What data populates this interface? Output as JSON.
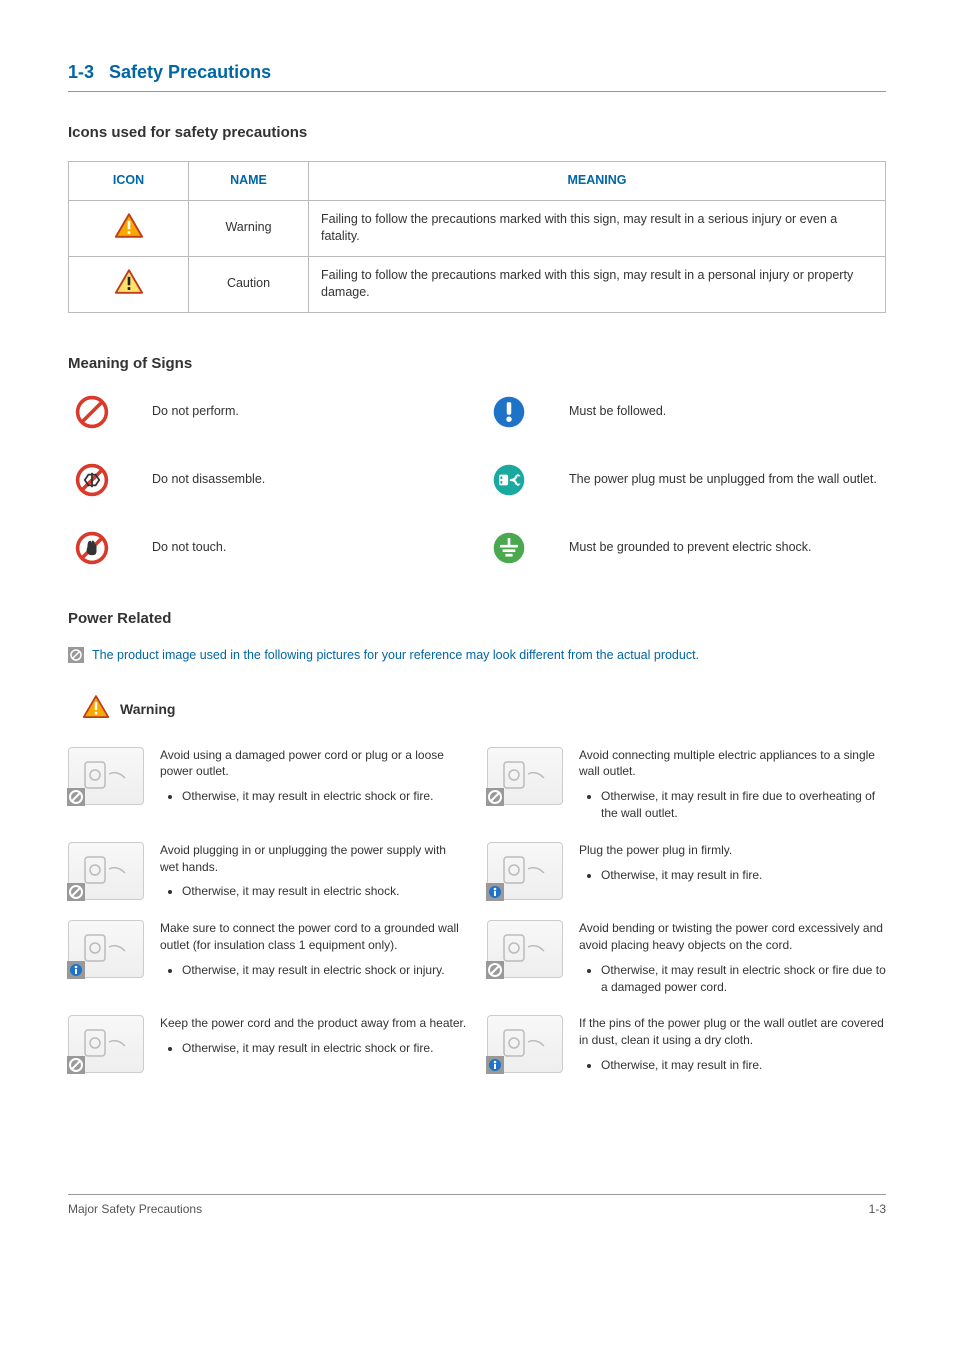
{
  "section": {
    "number": "1-3",
    "title": "Safety Precautions"
  },
  "subsections": {
    "icons": "Icons used for safety precautions",
    "signs": "Meaning of Signs",
    "power": "Power Related"
  },
  "iconTable": {
    "headers": {
      "icon": "ICON",
      "name": "NAME",
      "meaning": "MEANING"
    },
    "rows": [
      {
        "name": "Warning",
        "meaning": "Failing to follow the precautions marked with this sign, may result in a serious injury or even a fatality.",
        "tri_fill": "#f7a900",
        "tri_bang": "#ffffff"
      },
      {
        "name": "Caution",
        "meaning": "Failing to follow the precautions marked with this sign, may result in a personal injury or property damage.",
        "tri_fill": "#ffe26b",
        "tri_bang": "#222222"
      }
    ]
  },
  "signs": [
    {
      "kind": "prohibit",
      "text": "Do not perform."
    },
    {
      "kind": "must",
      "text": "Must be followed."
    },
    {
      "kind": "no-disassemble",
      "text": "Do not disassemble."
    },
    {
      "kind": "unplug",
      "text": "The power plug must be unplugged from the wall outlet."
    },
    {
      "kind": "no-touch",
      "text": "Do not touch."
    },
    {
      "kind": "ground",
      "text": "Must be grounded to prevent electric shock."
    }
  ],
  "note": "The product image used in the following pictures for your reference may look different from the actual product.",
  "warningLabel": "Warning",
  "warnings": [
    {
      "badge": "prohibit",
      "title": "Avoid using a damaged power cord or plug or a loose power outlet.",
      "bullet": "Otherwise, it may result in electric shock or fire."
    },
    {
      "badge": "prohibit",
      "title": "Avoid connecting multiple electric appliances to a single wall outlet.",
      "bullet": "Otherwise, it may result in fire due to overheating of the wall outlet."
    },
    {
      "badge": "prohibit",
      "title": "Avoid plugging in or unplugging the power supply with wet hands.",
      "bullet": "Otherwise, it may result in electric shock."
    },
    {
      "badge": "info",
      "title": "Plug the power plug in firmly.",
      "bullet": "Otherwise, it may result in fire."
    },
    {
      "badge": "info",
      "title": "Make sure to connect the power cord to a grounded wall outlet (for insulation class 1 equipment only).",
      "bullet": "Otherwise, it may result in electric shock or injury."
    },
    {
      "badge": "prohibit",
      "title": "Avoid bending or twisting the power cord excessively and avoid placing heavy objects on the cord.",
      "bullet": "Otherwise, it may result in electric shock or fire due to a damaged power cord."
    },
    {
      "badge": "prohibit",
      "title": "Keep the power cord and the product away from a heater.",
      "bullet": "Otherwise, it may result in electric shock or fire."
    },
    {
      "badge": "info",
      "title": "If the pins of the power plug or the wall outlet are covered in dust, clean it using a dry cloth.",
      "bullet": "Otherwise, it may result in fire."
    }
  ],
  "footer": {
    "left": "Major Safety Precautions",
    "right": "1-3"
  },
  "colors": {
    "accent": "#0066a4",
    "prohibit_red": "#d93a2b",
    "must_blue": "#1e73c9",
    "unplug_teal": "#1aa9a0",
    "ground_green": "#4aa84e",
    "tri_stroke": "#c03a1d"
  }
}
